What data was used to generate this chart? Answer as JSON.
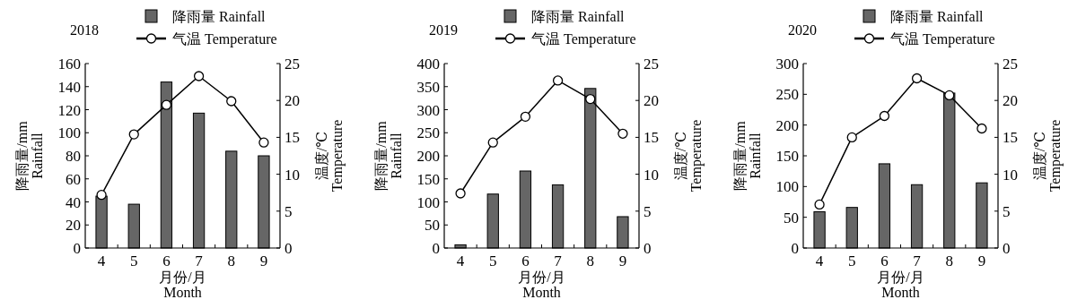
{
  "chart_data": [
    {
      "type": "bar",
      "title": "2018",
      "categories": [
        "4",
        "5",
        "6",
        "7",
        "8",
        "9"
      ],
      "xlabel": "月份/月\nMonth",
      "ylabel": "降雨量/mm\nRainfall",
      "y2label": "温度/℃\nTemperature",
      "ylim": [
        0,
        160
      ],
      "yticks": [
        0,
        20,
        40,
        60,
        80,
        100,
        120,
        140,
        160
      ],
      "y2lim": [
        0,
        25
      ],
      "y2ticks": [
        0,
        5,
        10,
        15,
        20,
        25
      ],
      "legend": "top",
      "marker": "circle",
      "series": [
        {
          "name": "降雨量 Rainfall",
          "color": "#666666",
          "values": [
            45,
            38,
            144,
            117,
            84,
            80
          ]
        },
        {
          "name": "气温 Temperature",
          "type": "line",
          "axis": "y2",
          "color": "#000000",
          "values": [
            7.2,
            15.4,
            19.4,
            23.3,
            19.9,
            14.3
          ]
        }
      ]
    },
    {
      "type": "bar",
      "title": "2019",
      "categories": [
        "4",
        "5",
        "6",
        "7",
        "8",
        "9"
      ],
      "xlabel": "月份/月\nMonth",
      "ylabel": "降雨量/mm\nRainfall",
      "y2label": "温度/℃\nTemperature",
      "ylim": [
        0,
        400
      ],
      "yticks": [
        0,
        50,
        100,
        150,
        200,
        250,
        300,
        350,
        400
      ],
      "y2lim": [
        0,
        25
      ],
      "y2ticks": [
        0,
        5,
        10,
        15,
        20,
        25
      ],
      "legend": "top",
      "marker": "circle",
      "series": [
        {
          "name": "降雨量 Rainfall",
          "color": "#666666",
          "values": [
            7,
            117,
            167,
            137,
            346,
            68
          ]
        },
        {
          "name": "气温 Temperature",
          "type": "line",
          "axis": "y2",
          "color": "#000000",
          "values": [
            7.4,
            14.3,
            17.8,
            22.7,
            20.2,
            15.5
          ]
        }
      ]
    },
    {
      "type": "bar",
      "title": "2020",
      "categories": [
        "4",
        "5",
        "6",
        "7",
        "8",
        "9"
      ],
      "xlabel": "月份/月\nMonth",
      "ylabel": "降雨量/mm\nRainfall",
      "y2label": "温度/℃\nTemperature",
      "ylim": [
        0,
        300
      ],
      "yticks": [
        0,
        50,
        100,
        150,
        200,
        250,
        300
      ],
      "y2lim": [
        0,
        25
      ],
      "y2ticks": [
        0,
        5,
        10,
        15,
        20,
        25
      ],
      "legend": "top",
      "marker": "circle",
      "series": [
        {
          "name": "降雨量 Rainfall",
          "color": "#666666",
          "values": [
            59,
            66,
            137,
            103,
            252,
            106
          ]
        },
        {
          "name": "气温 Temperature",
          "type": "line",
          "axis": "y2",
          "color": "#000000",
          "values": [
            5.9,
            15.0,
            17.9,
            23.0,
            20.7,
            16.2
          ]
        }
      ]
    }
  ]
}
